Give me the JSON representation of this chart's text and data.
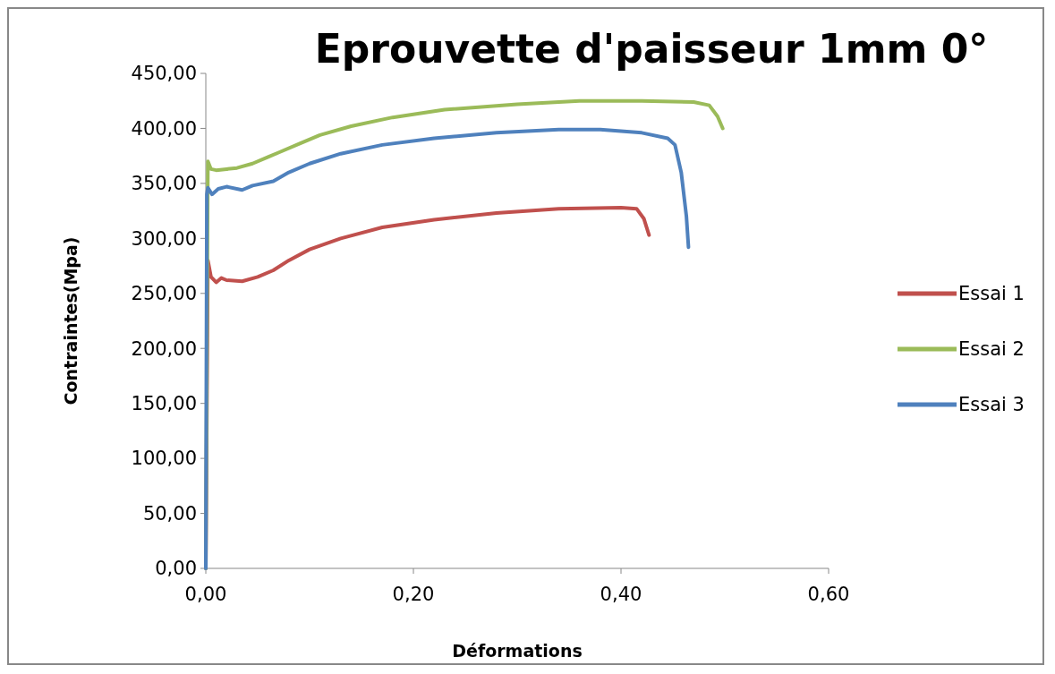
{
  "chart_data": {
    "type": "line",
    "title": "Eprouvette d'paisseur 1mm 0°",
    "xlabel": "Déformations",
    "ylabel": "Contraintes(Mpa)",
    "xlim": [
      0,
      0.6
    ],
    "ylim": [
      0,
      450
    ],
    "xticks": [
      {
        "value": 0,
        "label": "0,00"
      },
      {
        "value": 0.2,
        "label": "0,20"
      },
      {
        "value": 0.4,
        "label": "0,40"
      },
      {
        "value": 0.6,
        "label": "0,60"
      }
    ],
    "yticks": [
      {
        "value": 0,
        "label": "0,00"
      },
      {
        "value": 50,
        "label": "50,00"
      },
      {
        "value": 100,
        "label": "100,00"
      },
      {
        "value": 150,
        "label": "150,00"
      },
      {
        "value": 200,
        "label": "200,00"
      },
      {
        "value": 250,
        "label": "250,00"
      },
      {
        "value": 300,
        "label": "300,00"
      },
      {
        "value": 350,
        "label": "350,00"
      },
      {
        "value": 400,
        "label": "400,00"
      },
      {
        "value": 450,
        "label": "450,00"
      }
    ],
    "grid": false,
    "legend": "right",
    "marker": "none",
    "line_style": "solid",
    "series": [
      {
        "name": "Essai 1",
        "color": "#c0504d",
        "x": [
          0,
          0.002,
          0.005,
          0.01,
          0.015,
          0.02,
          0.035,
          0.05,
          0.065,
          0.08,
          0.1,
          0.13,
          0.17,
          0.22,
          0.28,
          0.34,
          0.4,
          0.415,
          0.422,
          0.427
        ],
        "values": [
          0,
          280,
          265,
          260,
          264,
          262,
          261,
          265,
          271,
          280,
          290,
          300,
          310,
          317,
          323,
          327,
          328,
          327,
          318,
          303
        ]
      },
      {
        "name": "Essai 2",
        "color": "#9bbb59",
        "x": [
          0,
          0.002,
          0.005,
          0.01,
          0.02,
          0.03,
          0.045,
          0.06,
          0.07,
          0.09,
          0.11,
          0.14,
          0.18,
          0.23,
          0.3,
          0.36,
          0.42,
          0.47,
          0.485,
          0.493,
          0.498
        ],
        "values": [
          0,
          370,
          363,
          362,
          363,
          364,
          368,
          374,
          378,
          386,
          394,
          402,
          410,
          417,
          422,
          425,
          425,
          424,
          421,
          411,
          400
        ]
      },
      {
        "name": "Essai 3",
        "color": "#4f81bd",
        "x": [
          0,
          0.001,
          0.002,
          0.006,
          0.012,
          0.02,
          0.035,
          0.045,
          0.065,
          0.08,
          0.1,
          0.13,
          0.17,
          0.22,
          0.28,
          0.34,
          0.38,
          0.42,
          0.445,
          0.452,
          0.458,
          0.463,
          0.465
        ],
        "values": [
          0,
          340,
          346,
          340,
          345,
          347,
          344,
          348,
          352,
          360,
          368,
          377,
          385,
          391,
          396,
          399,
          399,
          396,
          391,
          385,
          360,
          320,
          292
        ]
      }
    ]
  }
}
